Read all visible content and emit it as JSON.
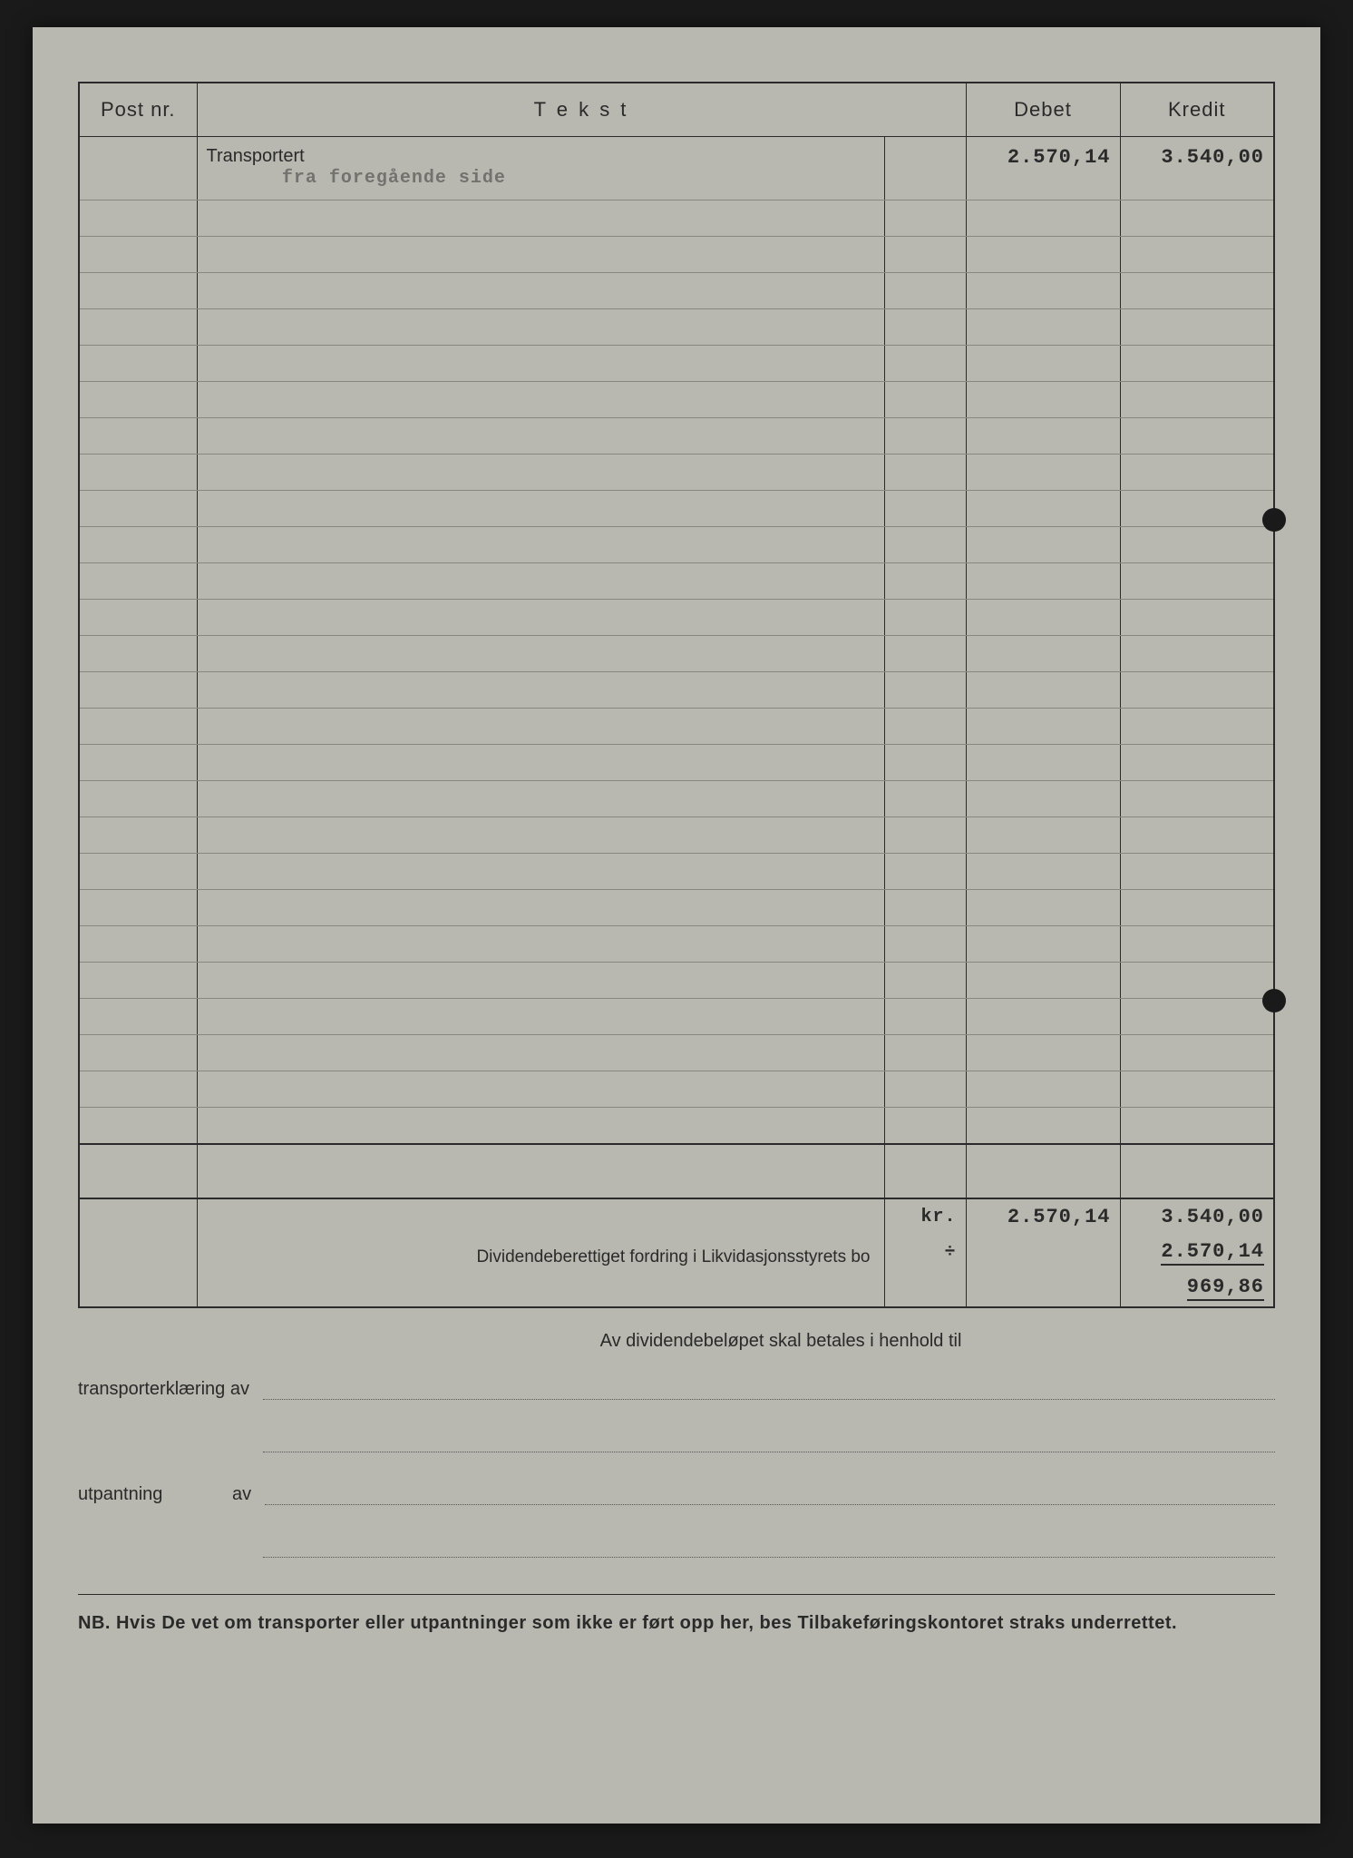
{
  "page": {
    "background_color": "#b8b8b0",
    "border_color": "#2a2a2a",
    "rule_color": "#888880"
  },
  "headers": {
    "post": "Post nr.",
    "tekst": "T e k s t",
    "debet": "Debet",
    "kredit": "Kredit"
  },
  "rows": {
    "transport_label": "Transportert",
    "transport_sub": "fra foregående side",
    "transport_debet": "2.570,14",
    "transport_kredit": "3.540,00"
  },
  "blank_row_count": 26,
  "totals": {
    "currency": "kr.",
    "debet_total": "2.570,14",
    "kredit_total": "3.540,00",
    "minus_symbol": "÷",
    "minus_value": "2.570,14",
    "dividend_label": "Dividendeberettiget fordring i Likvidasjonsstyrets bo",
    "dividend_value": "969,86"
  },
  "footer": {
    "center": "Av dividendebeløpet skal betales i henhold til",
    "transport_label": "transporterklæring av",
    "utpantning_label": "utpantning",
    "av": "av",
    "nb_prefix": "NB.",
    "nb_text": "Hvis De vet om transporter eller utpantninger som ikke er ført opp her, bes Tilbakeføringskontoret straks underrettet."
  }
}
